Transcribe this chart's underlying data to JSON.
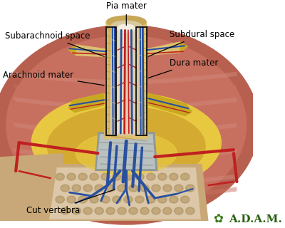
{
  "labels": {
    "pia_mater": "Pia mater",
    "subarachnoid_space": "Subarachnoid space",
    "arachnoid_mater": "Arachnoid mater",
    "subdural_space": "Subdural space",
    "dura_mater": "Dura mater",
    "cut_vertebra": "Cut vertebra",
    "adam_leaf": "✿",
    "adam_text": "A.D.A.M."
  },
  "colors": {
    "bg_white": "#ffffff",
    "bg_tan": "#c8a882",
    "muscle_outer": "#b86050",
    "muscle_mid": "#c87060",
    "muscle_inner": "#d08878",
    "fat_yellow": "#e8c840",
    "fat_mid": "#d4aa30",
    "bone_spongy": "#c8a878",
    "bone_cortex": "#a89060",
    "bone_light": "#dcc8a8",
    "vertebra_grey": "#909898",
    "vertebra_light": "#b8c0c0",
    "vertebra_dark": "#707878",
    "dura_tan": "#c8a858",
    "dura_light": "#dcc070",
    "dura_dark": "#a88040",
    "arachnoid": "#d8c8a0",
    "cord_outer": "#e0d0b0",
    "cord_inner": "#ece0c8",
    "cord_highlight": "#f4ece0",
    "blue_vessel": "#2850a0",
    "blue_light": "#4878c8",
    "red_vessel": "#c02020",
    "red_light": "#e04040",
    "nerve_yellow": "#c8a820",
    "nerve_light": "#e0c840",
    "annot_line": "#000000",
    "text_color": "#000000",
    "adam_green": "#2a6010",
    "adam_leaf_green": "#3a7818",
    "box_color": "#000000",
    "white_tissue": "#ddd8d0",
    "grey_tissue": "#b0b0a8"
  },
  "font_sizes": {
    "labels": 8.5,
    "adam": 11
  }
}
